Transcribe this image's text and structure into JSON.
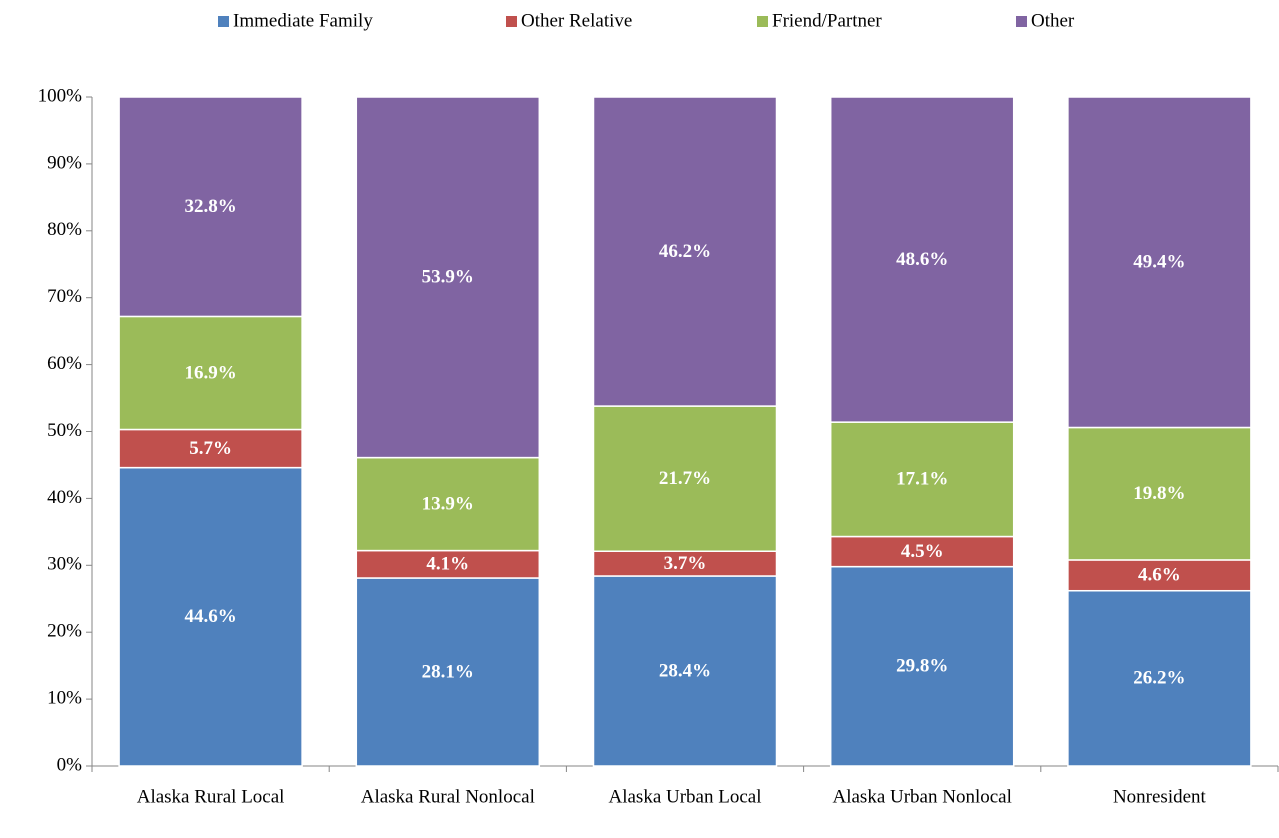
{
  "chart_data": {
    "type": "stacked_bar",
    "categories": [
      "Alaska Rural Local",
      "Alaska Rural Nonlocal",
      "Alaska Urban Local",
      "Alaska Urban Nonlocal",
      "Nonresident"
    ],
    "series": [
      {
        "name": "Immediate Family",
        "color": "#4f81bd",
        "values": [
          44.6,
          28.1,
          28.4,
          29.8,
          26.2
        ],
        "value_labels": [
          "44.6%",
          "28.1%",
          "28.4%",
          "29.8%",
          "26.2%"
        ]
      },
      {
        "name": "Other Relative",
        "color": "#c0504d",
        "values": [
          5.7,
          4.1,
          3.7,
          4.5,
          4.6
        ],
        "value_labels": [
          "5.7%",
          "4.1%",
          "3.7%",
          "4.5%",
          "4.6%"
        ]
      },
      {
        "name": "Friend/Partner",
        "color": "#9bbb59",
        "values": [
          16.9,
          13.9,
          21.7,
          17.1,
          19.8
        ],
        "value_labels": [
          "16.9%",
          "13.9%",
          "21.7%",
          "17.1%",
          "19.8%"
        ]
      },
      {
        "name": "Other",
        "color": "#8064a2",
        "values": [
          32.8,
          53.9,
          46.2,
          48.6,
          49.4
        ],
        "value_labels": [
          "32.8%",
          "53.9%",
          "46.2%",
          "48.6%",
          "49.4%"
        ]
      }
    ],
    "ylim": [
      0,
      100
    ],
    "yticks": [
      {
        "value": 0,
        "label": "0%"
      },
      {
        "value": 10,
        "label": "10%"
      },
      {
        "value": 20,
        "label": "20%"
      },
      {
        "value": 30,
        "label": "30%"
      },
      {
        "value": 40,
        "label": "40%"
      },
      {
        "value": 50,
        "label": "50%"
      },
      {
        "value": 60,
        "label": "60%"
      },
      {
        "value": 70,
        "label": "70%"
      },
      {
        "value": 80,
        "label": "80%"
      },
      {
        "value": 90,
        "label": "90%"
      },
      {
        "value": 100,
        "label": "100%"
      }
    ],
    "legend": "top",
    "grid": false
  }
}
